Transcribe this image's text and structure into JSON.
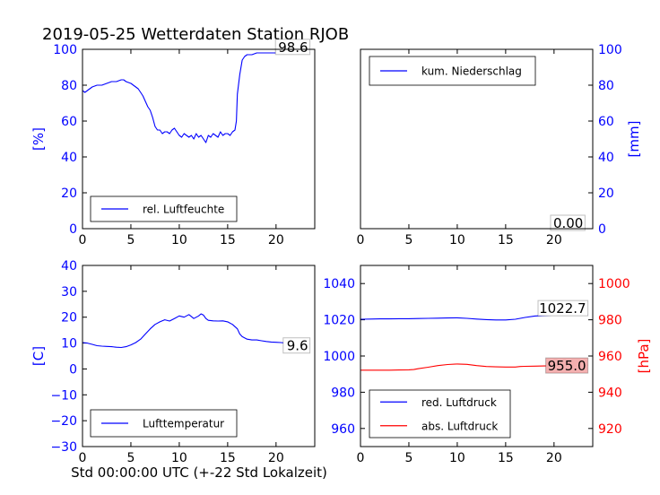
{
  "figure": {
    "title": "2019-05-25 Wetterdaten Station RJOB",
    "xlabel": "Std 00:00:00 UTC (+-22 Std Lokalzeit)"
  },
  "colors": {
    "blue": "#0000ff",
    "red": "#ff0000",
    "black": "#000000",
    "red_box": "#f4b0b0"
  },
  "chart_data": [
    {
      "type": "line",
      "id": "humidity",
      "ylabel": "[%]",
      "xlim": [
        0,
        24
      ],
      "ylim": [
        0,
        100
      ],
      "xticks": [
        0,
        5,
        10,
        15,
        20
      ],
      "yticks": [
        0,
        20,
        40,
        60,
        80,
        100
      ],
      "tick_color": "blue",
      "legend": "lower-left",
      "grid": false,
      "last_value_label": "98.6",
      "series": [
        {
          "name": "rel. Luftfeuchte",
          "color": "blue",
          "x": [
            0,
            0.25,
            0.5,
            0.75,
            1,
            1.5,
            2,
            2.5,
            3,
            3.5,
            4,
            4.25,
            4.5,
            5,
            5.25,
            5.5,
            5.75,
            6,
            6.25,
            6.5,
            6.75,
            7,
            7.25,
            7.5,
            7.75,
            8,
            8.25,
            8.5,
            8.75,
            9,
            9.25,
            9.5,
            9.75,
            10,
            10.25,
            10.5,
            10.75,
            11,
            11.25,
            11.5,
            11.75,
            12,
            12.25,
            12.5,
            12.75,
            13,
            13.25,
            13.5,
            13.75,
            14,
            14.25,
            14.5,
            14.75,
            15,
            15.25,
            15.5,
            15.75,
            15.9,
            16,
            16.25,
            16.5,
            16.75,
            17,
            17.5,
            18,
            18.5,
            19,
            19.5,
            20,
            20.5,
            21,
            21.5,
            22,
            22.5,
            23,
            23.5
          ],
          "y": [
            77,
            76,
            77,
            78,
            79,
            80,
            80,
            81,
            82,
            82,
            83,
            83,
            82,
            81,
            80,
            79,
            78,
            76,
            74,
            71,
            68,
            66,
            62,
            57,
            55,
            55,
            53,
            54,
            54,
            53,
            55,
            56,
            54,
            52,
            51,
            53,
            52,
            51,
            52,
            50,
            53,
            51,
            52,
            50,
            48,
            52,
            51,
            53,
            52,
            51,
            54,
            52,
            53,
            53,
            52,
            54,
            55,
            60,
            75,
            86,
            94,
            96,
            97,
            97,
            98,
            98,
            98,
            98,
            98,
            98,
            98,
            99,
            99,
            98,
            98,
            98.6
          ]
        }
      ]
    },
    {
      "type": "line",
      "id": "precipitation",
      "ylabel": "[mm]",
      "xlim": [
        0,
        24
      ],
      "ylim": [
        0,
        100
      ],
      "xticks": [
        0,
        5,
        10,
        15,
        20
      ],
      "yticks": [
        0,
        20,
        40,
        60,
        80,
        100
      ],
      "tick_color": "blue",
      "yaxis_side": "right",
      "legend": "upper-left",
      "grid": false,
      "last_value_label": "0.00",
      "series": [
        {
          "name": "kum. Niederschlag",
          "color": "blue",
          "x": [
            0,
            23.5
          ],
          "y": [
            0,
            0
          ]
        }
      ]
    },
    {
      "type": "line",
      "id": "temperature",
      "ylabel": "[C]",
      "xlim": [
        0,
        24
      ],
      "ylim": [
        -30,
        40
      ],
      "xticks": [
        0,
        5,
        10,
        15,
        20
      ],
      "yticks": [
        -30,
        -20,
        -10,
        0,
        10,
        20,
        30,
        40
      ],
      "tick_color": "blue",
      "legend": "lower-left",
      "grid": false,
      "last_value_label": "9.6",
      "series": [
        {
          "name": "Lufttemperatur",
          "color": "blue",
          "x": [
            0,
            0.5,
            1,
            1.5,
            2,
            2.5,
            3,
            3.5,
            4,
            4.5,
            5,
            5.5,
            6,
            6.5,
            7,
            7.5,
            8,
            8.5,
            9,
            9.5,
            10,
            10.5,
            11,
            11.5,
            12,
            12.25,
            12.5,
            12.75,
            13,
            13.5,
            14,
            14.5,
            15,
            15.5,
            16,
            16.25,
            16.5,
            17,
            17.5,
            18,
            18.5,
            19,
            19.5,
            20,
            20.5,
            21,
            21.5,
            22,
            22.5,
            23,
            23.5
          ],
          "y": [
            10.2,
            10,
            9.5,
            9,
            8.8,
            8.7,
            8.6,
            8.4,
            8.3,
            8.6,
            9.3,
            10.2,
            11.5,
            13.5,
            15.5,
            17.2,
            18.2,
            19,
            18.5,
            19.5,
            20.5,
            20,
            21,
            19.5,
            20.5,
            21.3,
            20.8,
            19.5,
            18.8,
            18.6,
            18.5,
            18.6,
            18.2,
            17.2,
            15.5,
            13.5,
            12.5,
            11.5,
            11.2,
            11.2,
            10.9,
            10.6,
            10.4,
            10.3,
            10.2,
            10,
            9.9,
            9.8,
            9.7,
            9.6,
            9.6
          ]
        }
      ]
    },
    {
      "type": "line",
      "id": "pressure",
      "ylabel": "[hPa]",
      "xlim": [
        0,
        24
      ],
      "ylim": [
        950,
        1050
      ],
      "ylim_right": [
        910,
        1010
      ],
      "xticks": [
        0,
        5,
        10,
        15,
        20
      ],
      "yticks": [
        960,
        980,
        1000,
        1020,
        1040
      ],
      "yticks_right": [
        920,
        940,
        960,
        980,
        1000
      ],
      "tick_color": "blue",
      "tick_color_right": "red",
      "legend": "lower-left",
      "grid": false,
      "last_value_label": "1022.7",
      "last_value_label_2": "955.0",
      "series": [
        {
          "name": "red. Luftdruck",
          "color": "blue",
          "axis": "left",
          "x": [
            0,
            1,
            2,
            3,
            4,
            5,
            6,
            7,
            8,
            9,
            10,
            11,
            12,
            13,
            14,
            15,
            16,
            17,
            18,
            19,
            20,
            21,
            22,
            23,
            23.5
          ],
          "y": [
            1020.3,
            1020.4,
            1020.5,
            1020.5,
            1020.6,
            1020.6,
            1020.7,
            1020.8,
            1020.9,
            1021,
            1021.1,
            1020.8,
            1020.4,
            1020.1,
            1019.9,
            1019.9,
            1020.3,
            1021.3,
            1022.1,
            1022.4,
            1022.6,
            1022.7,
            1022.7,
            1022.7,
            1022.7
          ]
        },
        {
          "name": "abs. Luftdruck",
          "color": "red",
          "axis": "right",
          "x": [
            0,
            1,
            2,
            3,
            4,
            5,
            5.5,
            6,
            7,
            8,
            9,
            10,
            11,
            12,
            13,
            14,
            15,
            16,
            16.5,
            17,
            18,
            19,
            20,
            21,
            22,
            23,
            23.5
          ],
          "y": [
            952.2,
            952.2,
            952.2,
            952.2,
            952.3,
            952.4,
            952.5,
            953,
            953.8,
            954.7,
            955.3,
            955.6,
            955.4,
            954.7,
            954.2,
            954,
            953.9,
            953.9,
            954.2,
            954.3,
            954.4,
            954.5,
            954.6,
            954.8,
            954.9,
            955,
            955
          ]
        }
      ]
    }
  ]
}
